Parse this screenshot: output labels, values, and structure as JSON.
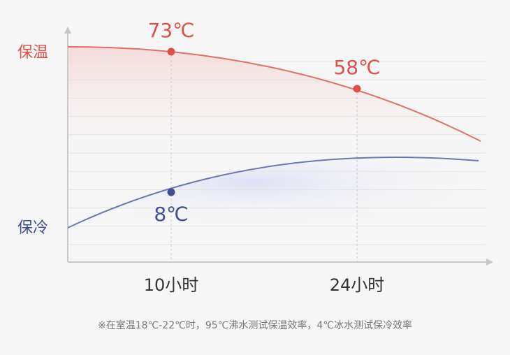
{
  "chart_data": {
    "type": "line",
    "categories": [
      "10小时",
      "24小时"
    ],
    "series": [
      {
        "name": "保温",
        "color": "#e0504a",
        "values": [
          73,
          58
        ],
        "value_labels": [
          "73℃",
          "58℃"
        ]
      },
      {
        "name": "保冷",
        "color": "#3f4f8f",
        "values": [
          8,
          null
        ],
        "value_labels": [
          "8℃",
          null
        ]
      }
    ],
    "grid": true,
    "annotations": [
      "※在室温18℃-22℃时，95℃沸水测试保温效率，4℃冰水测试保冷效率"
    ]
  }
}
